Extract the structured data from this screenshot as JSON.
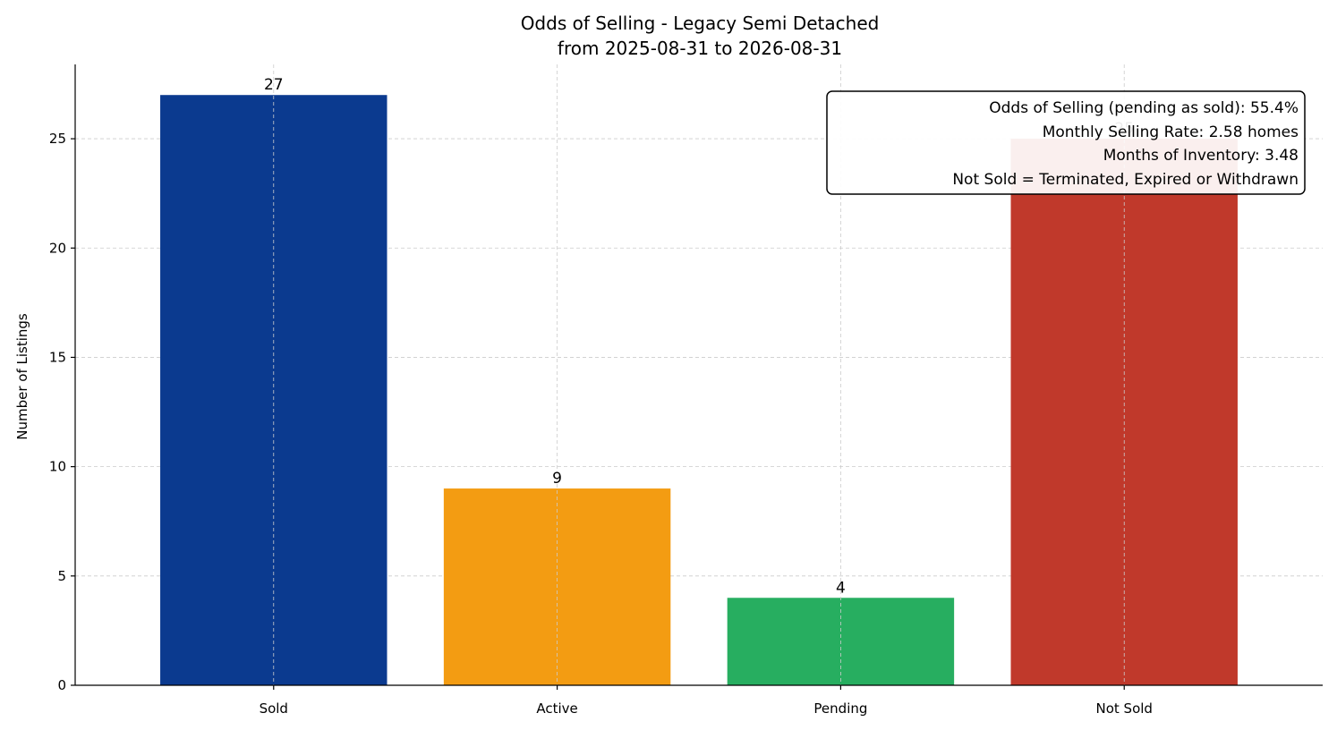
{
  "chart_data": {
    "type": "bar",
    "title": "Odds of Selling - Legacy Semi Detached",
    "subtitle": "from 2025-08-31 to 2026-08-31",
    "xlabel": "",
    "ylabel": "Number of Listings",
    "categories": [
      "Sold",
      "Active",
      "Pending",
      "Not Sold"
    ],
    "values": [
      27,
      9,
      4,
      25
    ],
    "colors": [
      "#0b3a8f",
      "#f39c12",
      "#27ae60",
      "#c0392b"
    ],
    "ylim": [
      0,
      28.4
    ],
    "yticks": [
      0,
      5,
      10,
      15,
      20,
      25
    ],
    "grid": true,
    "legend": "none",
    "annotation": {
      "placement": "top-right",
      "lines": [
        "Odds of Selling (pending as sold): 55.4%",
        "Monthly Selling Rate: 2.58 homes",
        "Months of Inventory: 3.48",
        "Not Sold = Terminated, Expired or Withdrawn"
      ]
    }
  }
}
